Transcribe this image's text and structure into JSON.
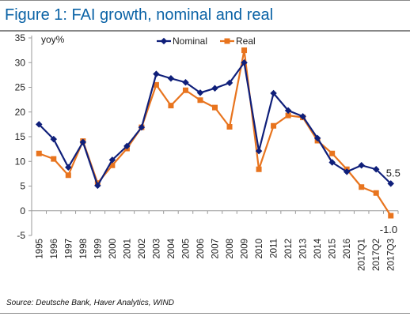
{
  "header": {
    "title": "Figure 1: FAI growth, nominal and real"
  },
  "footer": {
    "source": "Source: Deutsche Bank, Haver Analytics, WIND"
  },
  "colors": {
    "title": "#0b63a6",
    "nominal": "#0f1f7a",
    "real": "#e8741e",
    "axis": "#999999"
  },
  "chart_data": {
    "type": "line",
    "title": "",
    "ylabel": "yoy%",
    "xlabel": "",
    "ylim": [
      -5,
      35
    ],
    "yticks": [
      -5,
      0,
      5,
      10,
      15,
      20,
      25,
      30,
      35
    ],
    "grid": false,
    "legend_position": "top-center",
    "categories": [
      "1995",
      "1996",
      "1997",
      "1998",
      "1999",
      "2000",
      "2001",
      "2002",
      "2003",
      "2004",
      "2005",
      "2006",
      "2007",
      "2008",
      "2009",
      "2010",
      "2011",
      "2012",
      "2013",
      "2014",
      "2015",
      "2016",
      "2017Q1",
      "2017Q2",
      "2017Q3"
    ],
    "series": [
      {
        "name": "Nominal",
        "values": [
          17.5,
          14.5,
          8.8,
          13.9,
          5.1,
          10.3,
          13.1,
          16.9,
          27.7,
          26.8,
          26.0,
          23.9,
          24.8,
          25.9,
          30.0,
          12.1,
          23.8,
          20.3,
          19.1,
          14.7,
          9.8,
          7.9,
          9.2,
          8.4,
          5.5
        ]
      },
      {
        "name": "Real",
        "values": [
          11.6,
          10.5,
          7.2,
          14.1,
          5.6,
          9.2,
          12.6,
          16.9,
          25.5,
          21.3,
          24.4,
          22.4,
          20.9,
          17.0,
          32.5,
          8.4,
          17.2,
          19.3,
          18.9,
          14.2,
          11.6,
          8.4,
          4.8,
          3.6,
          -1.0
        ]
      }
    ],
    "annotations": [
      {
        "series": "Nominal",
        "category": "2017Q3",
        "label": "5.5"
      },
      {
        "series": "Real",
        "category": "2017Q3",
        "label": "-1.0"
      }
    ]
  }
}
